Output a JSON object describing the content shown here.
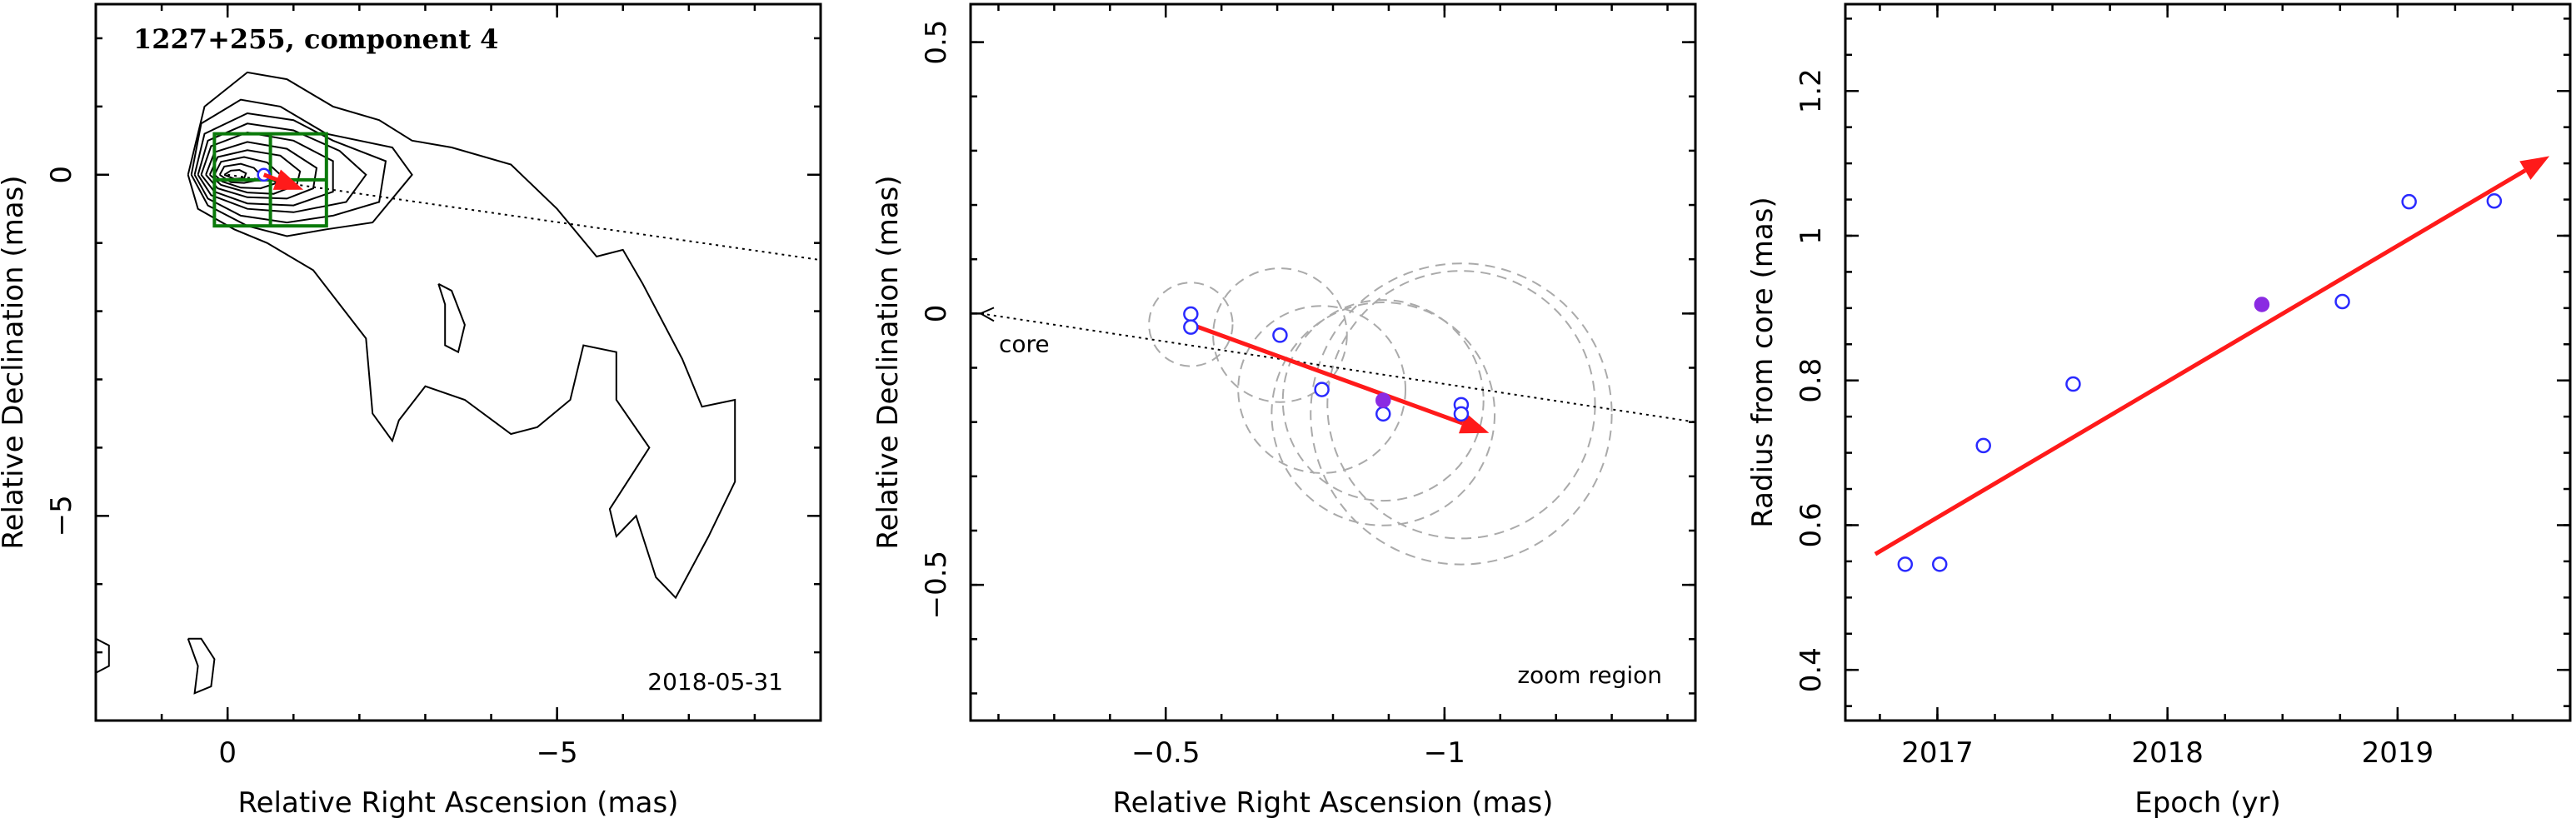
{
  "colors": {
    "detection": "#2a2aff",
    "highlight": "#8a2be2",
    "trend": "#ff1a1a",
    "zoom_box": "#0a7a0a",
    "fit_circle": "#aaaaaa"
  },
  "chart_data": [
    {
      "type": "contour",
      "title": "1227+255, component 4",
      "date_label": "2018-05-31",
      "xlabel": "Relative Right Ascension (mas)",
      "ylabel": "Relative Declination (mas)",
      "xlim": [
        2,
        -9
      ],
      "ylim": [
        -8,
        2.5
      ],
      "xticks": [
        {
          "v": 0,
          "label": "0"
        },
        {
          "v": -5,
          "label": "−5"
        }
      ],
      "yticks": [
        {
          "v": 0,
          "label": "0"
        },
        {
          "v": -5,
          "label": "−5"
        }
      ],
      "component_point": {
        "x": -0.55,
        "y": 0.0
      },
      "zoom_region": {
        "x": [
          0.2,
          -1.5
        ],
        "y": [
          0.6,
          -0.75
        ]
      },
      "motion_line": {
        "from": {
          "x": 0,
          "y": 0
        },
        "to": {
          "x": -9,
          "y": -1.25
        }
      },
      "contours": [
        [
          [
            0.6,
            0.0
          ],
          [
            0.35,
            1.0
          ],
          [
            -0.3,
            1.5
          ],
          [
            -0.9,
            1.4
          ],
          [
            -1.6,
            1.0
          ],
          [
            -2.3,
            0.8
          ],
          [
            -2.8,
            0.5
          ],
          [
            -3.4,
            0.4
          ],
          [
            -4.3,
            0.15
          ],
          [
            -5.0,
            -0.5
          ],
          [
            -5.6,
            -1.2
          ],
          [
            -6.0,
            -1.1
          ],
          [
            -6.3,
            -1.6
          ],
          [
            -6.9,
            -2.7
          ],
          [
            -7.2,
            -3.4
          ],
          [
            -7.7,
            -3.3
          ],
          [
            -7.7,
            -4.5
          ],
          [
            -7.3,
            -5.3
          ],
          [
            -6.8,
            -6.2
          ],
          [
            -6.5,
            -5.9
          ],
          [
            -6.2,
            -5.0
          ],
          [
            -5.9,
            -5.3
          ],
          [
            -5.8,
            -4.9
          ],
          [
            -6.4,
            -4.0
          ],
          [
            -5.9,
            -3.3
          ],
          [
            -5.9,
            -2.6
          ],
          [
            -5.4,
            -2.5
          ],
          [
            -5.2,
            -3.3
          ],
          [
            -4.7,
            -3.7
          ],
          [
            -4.3,
            -3.8
          ],
          [
            -3.6,
            -3.3
          ],
          [
            -3.0,
            -3.1
          ],
          [
            -2.6,
            -3.6
          ],
          [
            -2.5,
            -3.9
          ],
          [
            -2.2,
            -3.5
          ],
          [
            -2.1,
            -2.4
          ],
          [
            -1.3,
            -1.4
          ],
          [
            -0.6,
            -1.0
          ],
          [
            -0.1,
            -0.8
          ],
          [
            0.45,
            -0.5
          ],
          [
            0.6,
            0.0
          ]
        ],
        [
          [
            0.55,
            0.0
          ],
          [
            0.4,
            0.75
          ],
          [
            -0.2,
            1.1
          ],
          [
            -0.8,
            1.0
          ],
          [
            -1.5,
            0.6
          ],
          [
            -2.5,
            0.4
          ],
          [
            -2.8,
            0.0
          ],
          [
            -2.2,
            -0.7
          ],
          [
            -1.5,
            -0.8
          ],
          [
            -0.9,
            -0.9
          ],
          [
            -0.3,
            -0.75
          ],
          [
            0.3,
            -0.45
          ],
          [
            0.55,
            0.0
          ]
        ],
        [
          [
            0.5,
            0.0
          ],
          [
            0.35,
            0.6
          ],
          [
            -0.3,
            0.9
          ],
          [
            -1.0,
            0.8
          ],
          [
            -1.6,
            0.5
          ],
          [
            -2.4,
            0.2
          ],
          [
            -2.3,
            -0.4
          ],
          [
            -1.6,
            -0.6
          ],
          [
            -0.9,
            -0.7
          ],
          [
            -0.2,
            -0.6
          ],
          [
            0.3,
            -0.35
          ],
          [
            0.5,
            0.0
          ]
        ],
        [
          [
            0.45,
            0.0
          ],
          [
            0.3,
            0.5
          ],
          [
            -0.3,
            0.75
          ],
          [
            -1.0,
            0.65
          ],
          [
            -1.7,
            0.35
          ],
          [
            -2.1,
            0.0
          ],
          [
            -1.8,
            -0.4
          ],
          [
            -1.0,
            -0.55
          ],
          [
            -0.3,
            -0.5
          ],
          [
            0.25,
            -0.3
          ],
          [
            0.45,
            0.0
          ]
        ],
        [
          [
            0.4,
            0.0
          ],
          [
            0.25,
            0.42
          ],
          [
            -0.3,
            0.62
          ],
          [
            -1.0,
            0.5
          ],
          [
            -1.6,
            0.2
          ],
          [
            -1.6,
            -0.25
          ],
          [
            -1.0,
            -0.45
          ],
          [
            -0.3,
            -0.42
          ],
          [
            0.2,
            -0.25
          ],
          [
            0.4,
            0.0
          ]
        ],
        [
          [
            0.33,
            0.0
          ],
          [
            0.2,
            0.33
          ],
          [
            -0.3,
            0.48
          ],
          [
            -0.9,
            0.38
          ],
          [
            -1.35,
            0.1
          ],
          [
            -1.3,
            -0.2
          ],
          [
            -0.9,
            -0.35
          ],
          [
            -0.3,
            -0.33
          ],
          [
            0.15,
            -0.2
          ],
          [
            0.33,
            0.0
          ]
        ],
        [
          [
            0.27,
            0.0
          ],
          [
            0.15,
            0.26
          ],
          [
            -0.3,
            0.36
          ],
          [
            -0.8,
            0.28
          ],
          [
            -1.1,
            0.05
          ],
          [
            -1.05,
            -0.15
          ],
          [
            -0.7,
            -0.28
          ],
          [
            -0.3,
            -0.26
          ],
          [
            0.1,
            -0.15
          ],
          [
            0.27,
            0.0
          ]
        ],
        [
          [
            0.2,
            0.0
          ],
          [
            0.1,
            0.19
          ],
          [
            -0.25,
            0.26
          ],
          [
            -0.6,
            0.18
          ],
          [
            -0.8,
            0.0
          ],
          [
            -0.75,
            -0.12
          ],
          [
            -0.5,
            -0.2
          ],
          [
            -0.2,
            -0.19
          ],
          [
            0.08,
            -0.1
          ],
          [
            0.2,
            0.0
          ]
        ],
        [
          [
            0.12,
            0.0
          ],
          [
            0.05,
            0.12
          ],
          [
            -0.2,
            0.16
          ],
          [
            -0.4,
            0.1
          ],
          [
            -0.5,
            0.0
          ],
          [
            -0.45,
            -0.08
          ],
          [
            -0.25,
            -0.12
          ],
          [
            -0.05,
            -0.11
          ],
          [
            0.12,
            0.0
          ]
        ],
        [
          [
            0.05,
            0.0
          ],
          [
            -0.05,
            0.06
          ],
          [
            -0.18,
            0.07
          ],
          [
            -0.28,
            0.02
          ],
          [
            -0.25,
            -0.05
          ],
          [
            -0.1,
            -0.06
          ],
          [
            0.05,
            0.0
          ]
        ],
        [
          [
            -3.2,
            -1.6
          ],
          [
            -3.3,
            -1.9
          ],
          [
            -3.3,
            -2.5
          ],
          [
            -3.5,
            -2.6
          ],
          [
            -3.6,
            -2.2
          ],
          [
            -3.4,
            -1.7
          ],
          [
            -3.2,
            -1.6
          ]
        ],
        [
          [
            0.6,
            -6.8
          ],
          [
            0.45,
            -7.2
          ],
          [
            0.5,
            -7.6
          ],
          [
            0.25,
            -7.5
          ],
          [
            0.2,
            -7.1
          ],
          [
            0.4,
            -6.8
          ],
          [
            0.6,
            -6.8
          ]
        ],
        [
          [
            2.0,
            -6.8
          ],
          [
            1.8,
            -6.9
          ],
          [
            1.8,
            -7.2
          ],
          [
            2.0,
            -7.3
          ]
        ]
      ]
    },
    {
      "type": "scatter",
      "xlabel": "Relative Right Ascension (mas)",
      "ylabel": "Relative Declination (mas)",
      "xlim": [
        -0.15,
        -1.45
      ],
      "ylim": [
        -0.75,
        0.57
      ],
      "xticks": [
        {
          "v": -0.5,
          "label": "−0.5"
        },
        {
          "v": -1,
          "label": "−1"
        }
      ],
      "yticks": [
        {
          "v": 0.5,
          "label": "0.5"
        },
        {
          "v": 0,
          "label": "0"
        },
        {
          "v": -0.5,
          "label": "−0.5"
        }
      ],
      "annotations": {
        "core": "core",
        "zoom": "zoom region"
      },
      "points": [
        {
          "x": -0.545,
          "y": -0.001,
          "filled": false
        },
        {
          "x": -0.545,
          "y": -0.025,
          "filled": false
        },
        {
          "x": -0.705,
          "y": -0.04,
          "filled": false
        },
        {
          "x": -0.78,
          "y": -0.14,
          "filled": false
        },
        {
          "x": -0.89,
          "y": -0.185,
          "filled": false
        },
        {
          "x": -1.03,
          "y": -0.168,
          "filled": false
        },
        {
          "x": -1.03,
          "y": -0.185,
          "filled": false
        },
        {
          "x": -0.89,
          "y": -0.16,
          "filled": true
        }
      ],
      "fit_circles": [
        {
          "x": -0.545,
          "y": -0.02,
          "r": 0.075
        },
        {
          "x": -0.705,
          "y": -0.04,
          "r": 0.12
        },
        {
          "x": -0.78,
          "y": -0.14,
          "r": 0.15
        },
        {
          "x": -0.89,
          "y": -0.16,
          "r": 0.18
        },
        {
          "x": -0.89,
          "y": -0.185,
          "r": 0.2
        },
        {
          "x": -1.03,
          "y": -0.168,
          "r": 0.24
        },
        {
          "x": -1.03,
          "y": -0.185,
          "r": 0.27
        }
      ],
      "motion_line": {
        "from": {
          "x": -0.15,
          "y": 0.0
        },
        "to": {
          "x": -1.45,
          "y": -0.2
        }
      },
      "trend_arrow": {
        "from": {
          "x": -0.545,
          "y": -0.02
        },
        "to": {
          "x": -1.08,
          "y": -0.22
        }
      }
    },
    {
      "type": "scatter",
      "xlabel": "Epoch (yr)",
      "ylabel": "Radius from core (mas)",
      "xlim": [
        2016.6,
        2019.75
      ],
      "ylim": [
        0.33,
        1.32
      ],
      "xticks": [
        {
          "v": 2017,
          "label": "2017"
        },
        {
          "v": 2018,
          "label": "2018"
        },
        {
          "v": 2019,
          "label": "2019"
        }
      ],
      "yticks": [
        {
          "v": 0.4,
          "label": "0.4"
        },
        {
          "v": 0.6,
          "label": "0.6"
        },
        {
          "v": 0.8,
          "label": "0.8"
        },
        {
          "v": 1.0,
          "label": "1"
        },
        {
          "v": 1.2,
          "label": "1.2"
        }
      ],
      "points": [
        {
          "x": 2016.86,
          "y": 0.546,
          "filled": false
        },
        {
          "x": 2017.01,
          "y": 0.546,
          "filled": false
        },
        {
          "x": 2017.2,
          "y": 0.71,
          "filled": false
        },
        {
          "x": 2017.59,
          "y": 0.795,
          "filled": false
        },
        {
          "x": 2018.41,
          "y": 0.905,
          "filled": true
        },
        {
          "x": 2018.76,
          "y": 0.909,
          "filled": false
        },
        {
          "x": 2019.05,
          "y": 1.047,
          "filled": false
        },
        {
          "x": 2019.42,
          "y": 1.048,
          "filled": false
        }
      ],
      "trend_arrow": {
        "from": {
          "x": 2016.73,
          "y": 0.56
        },
        "to": {
          "x": 2019.66,
          "y": 1.11
        }
      }
    }
  ]
}
